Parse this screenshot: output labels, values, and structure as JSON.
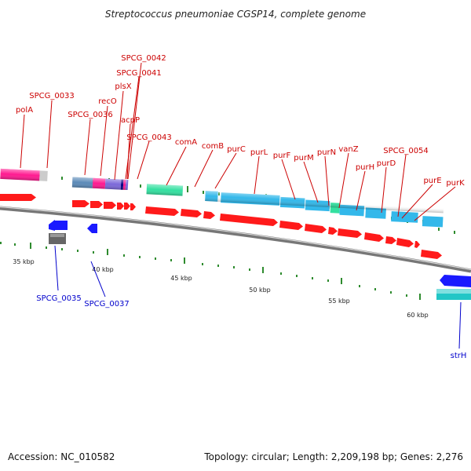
{
  "title": "Streptococcus pneumoniae CGSP14, complete genome",
  "footer": {
    "accession": "Accession: NC_010582",
    "topology": "Topology: circular; Length: 2,209,198 bp; Genes: 2,276"
  },
  "colors": {
    "forward_label": "#cc0000",
    "reverse_label": "#0000cc",
    "cds_forward": "#ff1a1a",
    "cds_reverse": "#1a1aff",
    "backbone": "#888888",
    "tick": "#2e8b2e",
    "feature_pink": "#ff1a90",
    "feature_lightblue": "#33b8ea",
    "feature_slate": "#5b8ab8",
    "feature_violet": "#7b68d9",
    "feature_green": "#33e0a0",
    "feature_teal": "#22c6c6",
    "feature_gray": "#777777",
    "feature_lightgray": "#cccccc"
  },
  "ruler": [
    "35 kbp",
    "40 kbp",
    "45 kbp",
    "50 kbp",
    "55 kbp",
    "60 kbp"
  ],
  "top_genes": [
    "polA",
    "SPCG_0033",
    "SPCG_0036",
    "recO",
    "plsX",
    "SPCG_0041",
    "SPCG_0042",
    "acpP",
    "SPCG_0043",
    "comA",
    "comB",
    "purC",
    "purL",
    "purF",
    "purM",
    "purN",
    "vanZ",
    "purH",
    "purD",
    "SPCG_0054",
    "purE",
    "purK"
  ],
  "bottom_genes": [
    "SPCG_0035",
    "SPCG_0037",
    "strH"
  ]
}
